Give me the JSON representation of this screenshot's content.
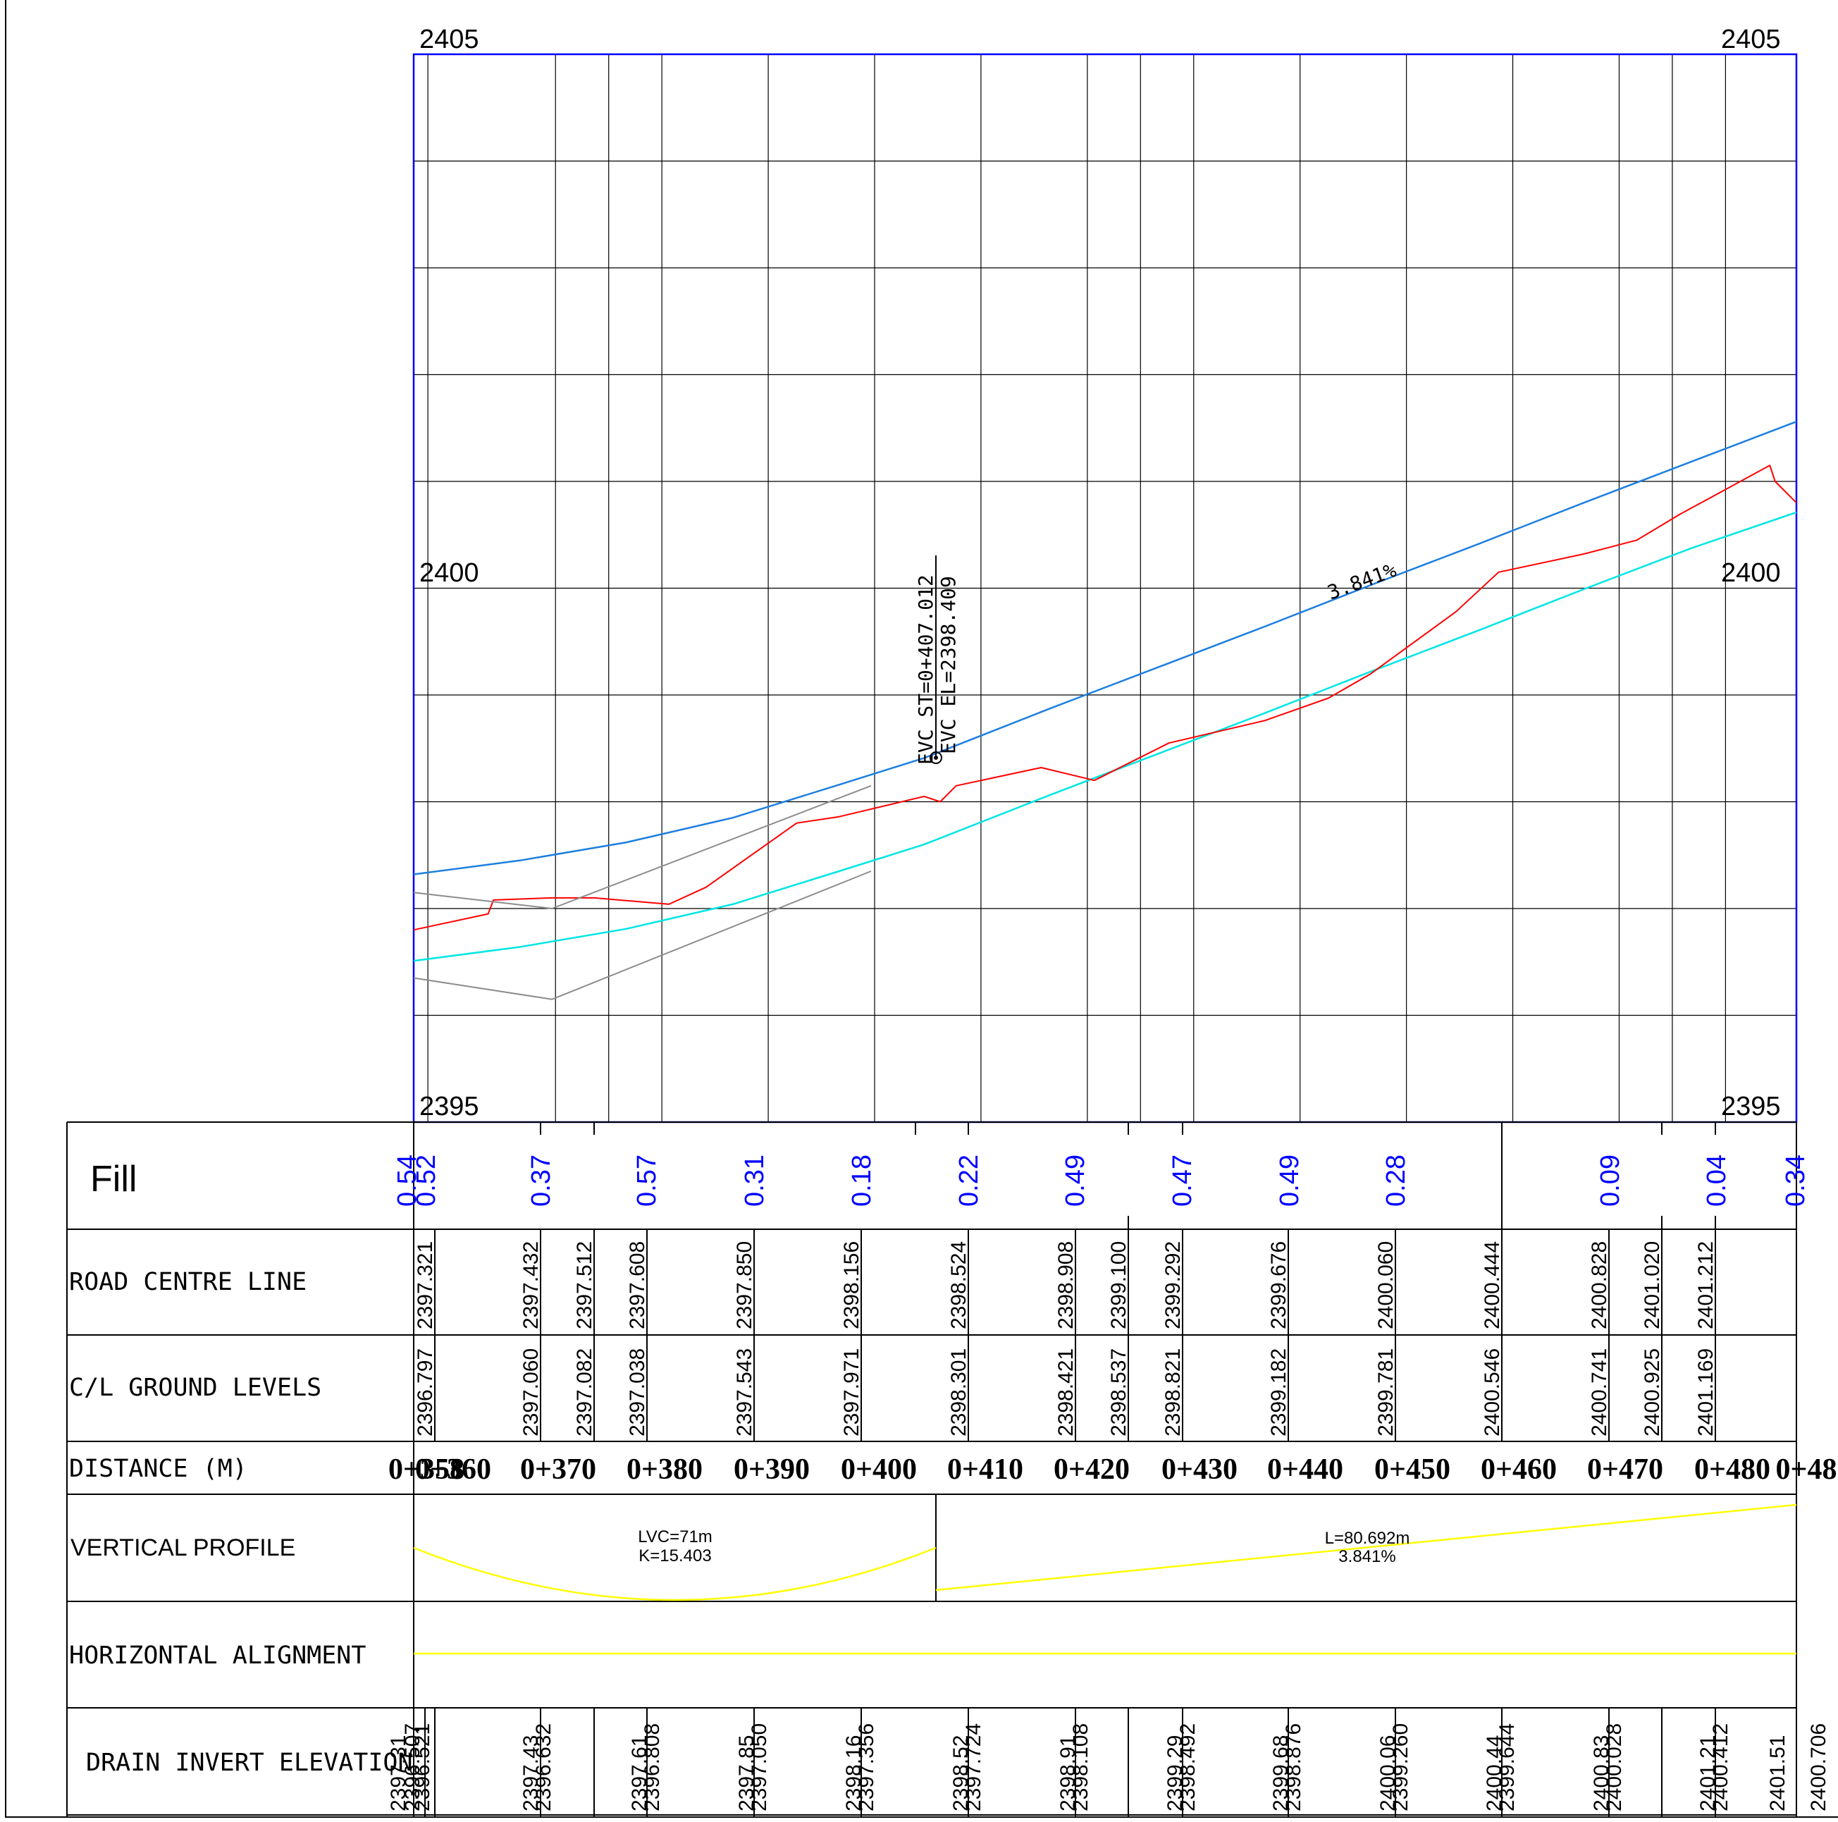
{
  "colors": {
    "grid_border": "#0000ff",
    "grid_line": "#000000",
    "design_profile": "#1e7fe0",
    "offset_profile": "#00e5e5",
    "ground_profile": "#ff0000",
    "existing_profile": "#8c8c8c",
    "fill_text": "#0000ff",
    "vertical_profile_bar": "#ffff00",
    "horizontal_alignment_bar": "#ffff00"
  },
  "elevation_labels": {
    "top": "2405",
    "middle": "2400",
    "bottom": "2395"
  },
  "annotations": {
    "evc_station": "EVC  ST=0+407.012",
    "evc_elevation": "EVC  EL=2398.409",
    "grade": "3.841%"
  },
  "band_labels": {
    "fill": "Fill",
    "road_centre_line": "ROAD CENTRE LINE",
    "ground_levels": "C/L GROUND LEVELS",
    "distance": "DISTANCE (M)",
    "vertical_profile": "VERTICAL PROFILE",
    "horizontal_alignment": "HORIZONTAL   ALIGNMENT",
    "drain_invert": "DRAIN INVERT ELEVATION"
  },
  "vertical_profile_labels": {
    "curve_length": "LVC=71m",
    "curve_k": "K=15.403",
    "tangent_length": "L=80.692m",
    "tangent_grade": "3.841%"
  },
  "chart_data": {
    "type": "line",
    "title": "",
    "xlabel": "DISTANCE (M)",
    "ylabel": "",
    "xlim": [
      0,
      130
    ],
    "ylim": [
      2395,
      2405
    ],
    "grid": true,
    "distance_labels": [
      "0+360",
      "0+370",
      "0+380",
      "0+390",
      "0+400",
      "0+410",
      "0+420",
      "0+430",
      "0+440",
      "0+450",
      "0+460",
      "0+470",
      "0+480"
    ],
    "distance_overlaps": {
      "left": "0+358",
      "right": "0+48"
    },
    "fill_values": [
      "0.54",
      "0.52",
      "0.37",
      "0.57",
      "0.31",
      "0.18",
      "0.22",
      "0.49",
      "0.47",
      "0.49",
      "0.28",
      "0.09",
      "0.04",
      "0.34"
    ],
    "road_centre_line": [
      "2397.321",
      "2397.432",
      "2397.512",
      "2397.608",
      "2397.850",
      "2398.156",
      "2398.524",
      "2398.908",
      "2399.100",
      "2399.292",
      "2399.676",
      "2400.060",
      "2400.444",
      "2400.828",
      "2401.020",
      "2401.212"
    ],
    "ground_levels": [
      "2396.797",
      "2397.060",
      "2397.082",
      "2397.038",
      "2397.543",
      "2397.971",
      "2398.301",
      "2398.421",
      "2398.537",
      "2398.821",
      "2399.182",
      "2399.781",
      "2400.546",
      "2400.741",
      "2400.925",
      "2401.169"
    ],
    "drain_invert": [
      "2397.31",
      "2396.507",
      "2396.521",
      "2397.43",
      "2396.632",
      "2397.61",
      "2396.808",
      "2397.85",
      "2397.050",
      "2398.16",
      "2397.356",
      "2398.52",
      "2397.724",
      "2398.91",
      "2398.108",
      "2399.29",
      "2398.492",
      "2399.68",
      "2398.876",
      "2400.06",
      "2399.260",
      "2400.44",
      "2399.644",
      "2400.83",
      "2400.028",
      "2401.21",
      "2400.412",
      "2401.51",
      "2400.706"
    ],
    "series": [
      {
        "key": "design",
        "points": [
          [
            0,
            2397.32
          ],
          [
            10,
            2397.45
          ],
          [
            20,
            2397.62
          ],
          [
            30,
            2397.85
          ],
          [
            40,
            2398.16
          ],
          [
            48,
            2398.41
          ],
          [
            60,
            2398.88
          ],
          [
            70,
            2399.26
          ],
          [
            80,
            2399.64
          ],
          [
            90,
            2400.03
          ],
          [
            100,
            2400.41
          ],
          [
            110,
            2400.8
          ],
          [
            120,
            2401.18
          ],
          [
            130,
            2401.56
          ]
        ]
      },
      {
        "key": "offset",
        "points": [
          [
            0,
            2396.51
          ],
          [
            10,
            2396.64
          ],
          [
            20,
            2396.81
          ],
          [
            30,
            2397.04
          ],
          [
            40,
            2397.35
          ],
          [
            48,
            2397.6
          ],
          [
            60,
            2398.07
          ],
          [
            70,
            2398.45
          ],
          [
            80,
            2398.83
          ],
          [
            90,
            2399.22
          ],
          [
            100,
            2399.6
          ],
          [
            110,
            2399.99
          ],
          [
            120,
            2400.37
          ],
          [
            130,
            2400.71
          ]
        ]
      },
      {
        "key": "ground",
        "points": [
          [
            0,
            2396.8
          ],
          [
            7,
            2396.95
          ],
          [
            7.5,
            2397.08
          ],
          [
            13,
            2397.1
          ],
          [
            17,
            2397.1
          ],
          [
            24,
            2397.04
          ],
          [
            27.5,
            2397.2
          ],
          [
            36,
            2397.8
          ],
          [
            40,
            2397.86
          ],
          [
            48,
            2398.05
          ],
          [
            49.5,
            2398.0
          ],
          [
            51,
            2398.15
          ],
          [
            59,
            2398.32
          ],
          [
            64,
            2398.2
          ],
          [
            71,
            2398.55
          ],
          [
            80,
            2398.76
          ],
          [
            86,
            2398.97
          ],
          [
            90,
            2399.2
          ],
          [
            98,
            2399.78
          ],
          [
            102,
            2400.15
          ],
          [
            110,
            2400.32
          ],
          [
            115,
            2400.45
          ],
          [
            119,
            2400.69
          ],
          [
            127.5,
            2401.15
          ],
          [
            128,
            2401.0
          ],
          [
            130,
            2400.8
          ]
        ]
      },
      {
        "key": "existing_upper",
        "points": [
          [
            0,
            2397.15
          ],
          [
            13,
            2397.0
          ],
          [
            43,
            2398.15
          ]
        ]
      },
      {
        "key": "existing_lower",
        "points": [
          [
            0,
            2396.35
          ],
          [
            13,
            2396.15
          ],
          [
            43,
            2397.35
          ]
        ]
      }
    ]
  }
}
